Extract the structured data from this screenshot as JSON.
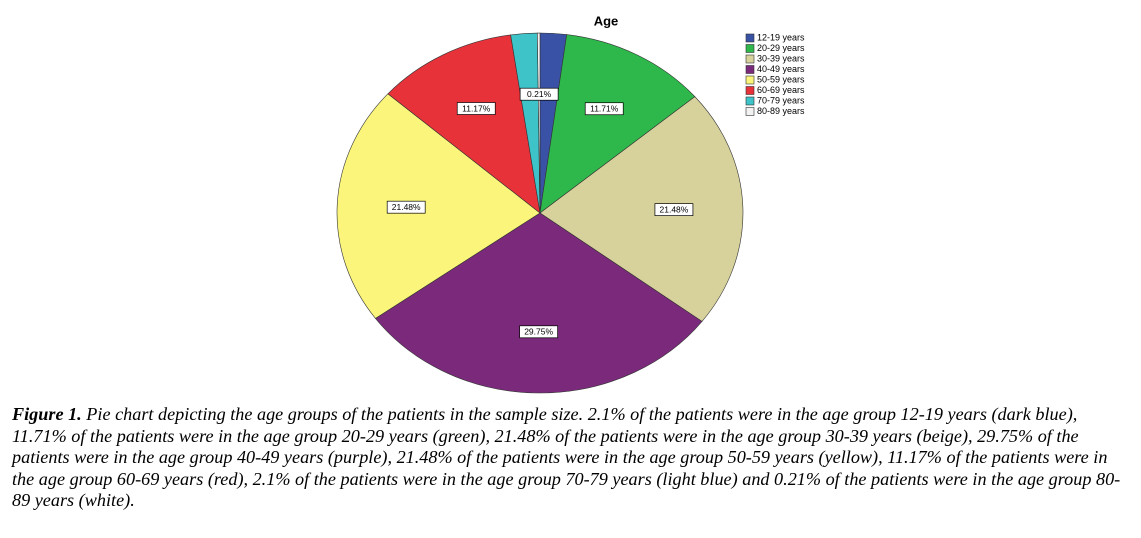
{
  "chart_data": {
    "type": "pie",
    "title": "Age",
    "categories": [
      "12-19 years",
      "20-29 years",
      "30-39 years",
      "40-49 years",
      "50-59 years",
      "60-69 years",
      "70-79 years",
      "80-89 years"
    ],
    "values": [
      2.1,
      11.71,
      21.48,
      29.75,
      21.48,
      11.17,
      2.1,
      0.21
    ],
    "value_labels": [
      null,
      "11.71%",
      "21.48%",
      "29.75%",
      "21.48%",
      "11.17%",
      null,
      "0.21%"
    ],
    "colors": [
      "#3a52a6",
      "#2eb84b",
      "#d7d19c",
      "#7b2a7b",
      "#fbf67b",
      "#e8323a",
      "#3ec4c8",
      "#f2f2f2"
    ],
    "legend": "top-right",
    "caption_label": "Figure 1.",
    "caption": "Pie chart depicting the age groups of the patients in the sample size. 2.1% of the patients were in the age group 12-19 years (dark blue), 11.71% of the patients were in the age group 20-29 years (green),  21.48% of the patients were in the age group 30-39 years (beige), 29.75% of the patients were in the age group 40-49 years (purple),  21.48% of the patients were in the age group 50-59 years (yellow), 11.17% of the patients were in the age group 60-69 years (red),  2.1% of the patients were in the age group 70-79 years (light blue) and  0.21% of the patients were in the age group 80-89 years (white)."
  }
}
